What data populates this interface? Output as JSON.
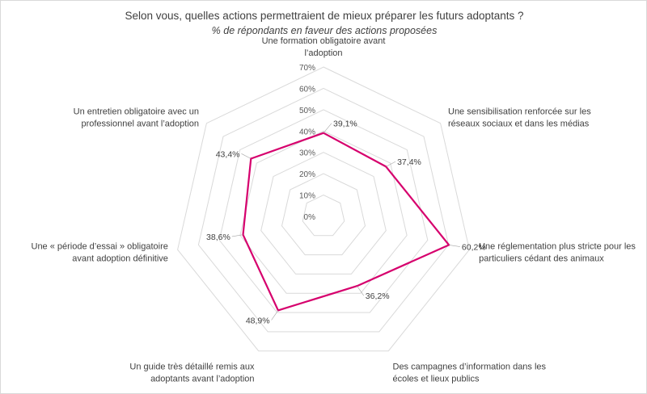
{
  "chart_data": {
    "type": "radar",
    "title": "Selon vous, quelles actions permettraient de mieux préparer les futurs adoptants ?",
    "subtitle": "% de répondants en faveur des actions proposées",
    "categories": [
      [
        "Une formation obligatoire avant",
        "l’adoption"
      ],
      [
        "Une sensibilisation renforcée sur les",
        "réseaux sociaux et dans les médias"
      ],
      [
        "Une réglementation plus stricte pour les",
        "particuliers cédant des animaux"
      ],
      [
        "Des campagnes d’information dans les",
        "écoles et lieux publics"
      ],
      [
        "Un guide très détaillé remis aux",
        "adoptants avant l’adoption"
      ],
      [
        "Une « période d’essai » obligatoire",
        "avant adoption définitive"
      ],
      [
        "Un entretien obligatoire avec un",
        "professionnel avant l’adoption"
      ]
    ],
    "values": [
      39.1,
      37.4,
      60.2,
      36.2,
      48.9,
      38.6,
      43.4
    ],
    "data_labels": [
      "39,1%",
      "37,4%",
      "60,2%",
      "36,2%",
      "48,9%",
      "38,6%",
      "43,4%"
    ],
    "axis_ticks": [
      "0%",
      "10%",
      "20%",
      "30%",
      "40%",
      "50%",
      "60%",
      "70%"
    ],
    "rmin": 0,
    "rmax": 70,
    "series_color": "#d6006d",
    "grid_color": "#d9d9d9"
  }
}
